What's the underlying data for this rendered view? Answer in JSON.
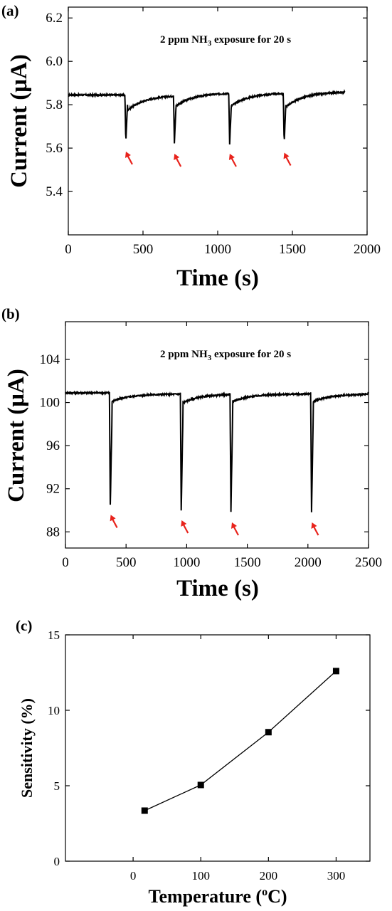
{
  "chart_data": [
    {
      "panel_label": "(a)",
      "type": "line",
      "annotation": {
        "pre": "2 ppm NH",
        "sub": "3",
        "post": " exposure for 20 s"
      },
      "xlabel": "Time (s)",
      "ylabel": "Current (μA)",
      "xlim": [
        0,
        2000
      ],
      "ylim": [
        5.2,
        6.25
      ],
      "xticks": [
        0,
        500,
        1000,
        1500,
        2000
      ],
      "yticks": [
        5.4,
        5.6,
        5.8,
        6.0,
        6.2
      ],
      "ytick_labels": [
        "5.4",
        "5.6",
        "5.8",
        "6.0",
        "6.2"
      ],
      "baseline": 5.845,
      "x_end": 1850,
      "end_value": 5.86,
      "dips": [
        {
          "x": 385,
          "min": 5.63,
          "recovery_depth": 0.07,
          "settle_to": 5.845
        },
        {
          "x": 710,
          "min": 5.62,
          "recovery_depth": 0.06,
          "settle_to": 5.855
        },
        {
          "x": 1080,
          "min": 5.62,
          "recovery_depth": 0.06,
          "settle_to": 5.855
        },
        {
          "x": 1445,
          "min": 5.625,
          "recovery_depth": 0.07,
          "settle_to": 5.86
        }
      ],
      "arrows_at_x": [
        395,
        720,
        1090,
        1455
      ],
      "arrow_color": "#e8231c",
      "line_color": "#000000"
    },
    {
      "panel_label": "(b)",
      "type": "line",
      "annotation": {
        "pre": "2 ppm NH",
        "sub": "3",
        "post": " exposure for 20 s"
      },
      "xlabel": "Time (s)",
      "ylabel": "Current (μA)",
      "xlim": [
        0,
        2500
      ],
      "ylim": [
        86.5,
        107.5
      ],
      "xticks": [
        0,
        500,
        1000,
        1500,
        2000,
        2500
      ],
      "yticks": [
        88,
        92,
        96,
        100,
        104
      ],
      "ytick_labels": [
        "88",
        "92",
        "96",
        "100",
        "104"
      ],
      "baseline": 100.9,
      "x_end": 2500,
      "end_value": 100.9,
      "dips": [
        {
          "x": 370,
          "min": 90.5,
          "recovery_depth": 0.7,
          "settle_to": 100.8
        },
        {
          "x": 955,
          "min": 90.0,
          "recovery_depth": 0.8,
          "settle_to": 100.8
        },
        {
          "x": 1365,
          "min": 89.8,
          "recovery_depth": 0.7,
          "settle_to": 100.8
        },
        {
          "x": 2030,
          "min": 89.8,
          "recovery_depth": 0.7,
          "settle_to": 100.8
        }
      ],
      "arrows_at_x": [
        385,
        970,
        1385,
        2045
      ],
      "arrow_color": "#e8231c",
      "line_color": "#000000"
    },
    {
      "panel_label": "(c)",
      "type": "line",
      "xlabel": {
        "pre": "Temperature (",
        "sup": "o",
        "post": "C)"
      },
      "ylabel": "Sensitivity (%)",
      "xlim": [
        -100,
        350
      ],
      "ylim": [
        0,
        15
      ],
      "xticks": [
        0,
        100,
        200,
        300
      ],
      "yticks": [
        0,
        5,
        10,
        15
      ],
      "x": [
        17,
        100,
        200,
        300
      ],
      "y": [
        3.35,
        5.05,
        8.55,
        12.6
      ],
      "marker": "square",
      "line_color": "#000000"
    }
  ]
}
